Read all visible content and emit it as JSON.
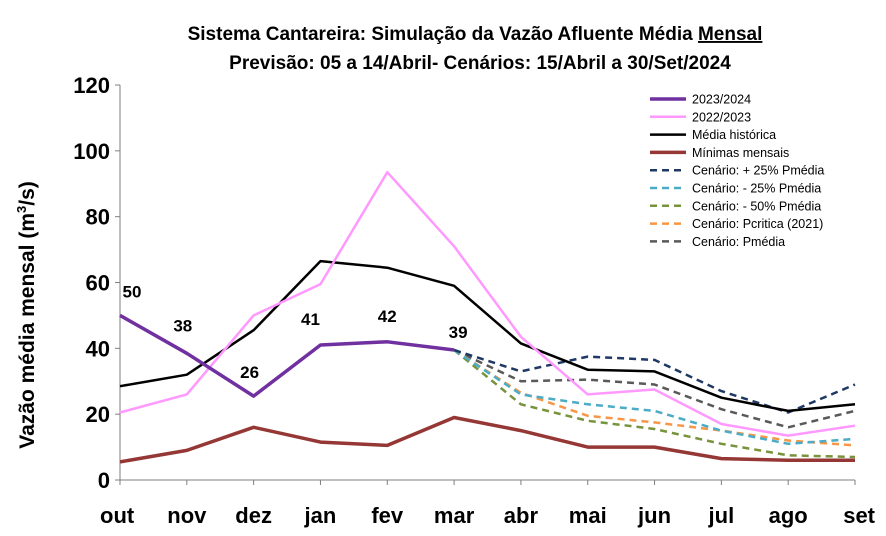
{
  "chart_data": {
    "type": "line",
    "title_line1_prefix": "Sistema Cantareira: Simulação da Vazão Afluente Média ",
    "title_line1_underlined": "Mensal",
    "title_line2": "Previsão: 05 a 14/Abril- Cenários: 15/Abril a 30/Set/2024",
    "ylabel_prefix": "Vazão média mensal (m",
    "ylabel_sup": "3",
    "ylabel_suffix": "/s)",
    "categories": [
      "out",
      "nov",
      "dez",
      "jan",
      "fev",
      "mar",
      "abr",
      "mai",
      "jun",
      "jul",
      "ago",
      "set"
    ],
    "ylim": [
      0,
      120
    ],
    "yticks": [
      "0",
      "20",
      "40",
      "60",
      "80",
      "100",
      "120"
    ],
    "grid": false,
    "legend_position": "top-right",
    "series": [
      {
        "name": "2023/2024",
        "color": "#7030A0",
        "dash": false,
        "width": 3.5,
        "values": [
          50,
          38.5,
          25.5,
          41,
          42,
          39.5,
          null,
          null,
          null,
          null,
          null,
          null
        ],
        "labels": [
          "50",
          "38",
          "26",
          "41",
          "42",
          "39"
        ]
      },
      {
        "name": "2022/2023",
        "color": "#FF99FF",
        "dash": false,
        "width": 2.5,
        "values": [
          20.5,
          26,
          50,
          59.5,
          93.5,
          71,
          43.5,
          26,
          27.5,
          17,
          13.5,
          16.5
        ]
      },
      {
        "name": "Média histórica",
        "color": "#000000",
        "dash": false,
        "width": 2.5,
        "values": [
          28.5,
          32,
          45.5,
          66.5,
          64.5,
          59,
          41.5,
          33.5,
          33,
          25,
          21,
          23
        ]
      },
      {
        "name": "Mínimas mensais",
        "color": "#953735",
        "dash": false,
        "width": 3.5,
        "values": [
          5.5,
          9,
          16,
          11.5,
          10.5,
          19,
          15,
          10,
          10,
          6.5,
          6,
          6
        ]
      },
      {
        "name": "Cenário: + 25% Pmédia",
        "color": "#1F3864",
        "dash": true,
        "width": 2.5,
        "values": [
          null,
          null,
          null,
          null,
          null,
          39.5,
          33,
          37.5,
          36.5,
          27,
          20.5,
          29
        ]
      },
      {
        "name": "Cenário: - 25% Pmédia",
        "color": "#4BACC6",
        "dash": true,
        "width": 2.5,
        "values": [
          null,
          null,
          null,
          null,
          null,
          39.5,
          26,
          23,
          21,
          15,
          11,
          12.5
        ]
      },
      {
        "name": "Cenário: - 50% Pmédia",
        "color": "#77933C",
        "dash": true,
        "width": 2.5,
        "values": [
          null,
          null,
          null,
          null,
          null,
          39.5,
          23,
          18,
          15.5,
          11,
          7.5,
          7
        ]
      },
      {
        "name": "Cenário: Pcritica (2021)",
        "color": "#F79646",
        "dash": true,
        "width": 2.5,
        "values": [
          null,
          null,
          null,
          null,
          null,
          39.5,
          26.5,
          19.5,
          17.5,
          15,
          12,
          10.5
        ]
      },
      {
        "name": "Cenário: Pmédia",
        "color": "#595959",
        "dash": true,
        "width": 2.5,
        "values": [
          null,
          null,
          null,
          null,
          null,
          39.5,
          30,
          30.5,
          29,
          21.5,
          16,
          21
        ]
      }
    ]
  }
}
